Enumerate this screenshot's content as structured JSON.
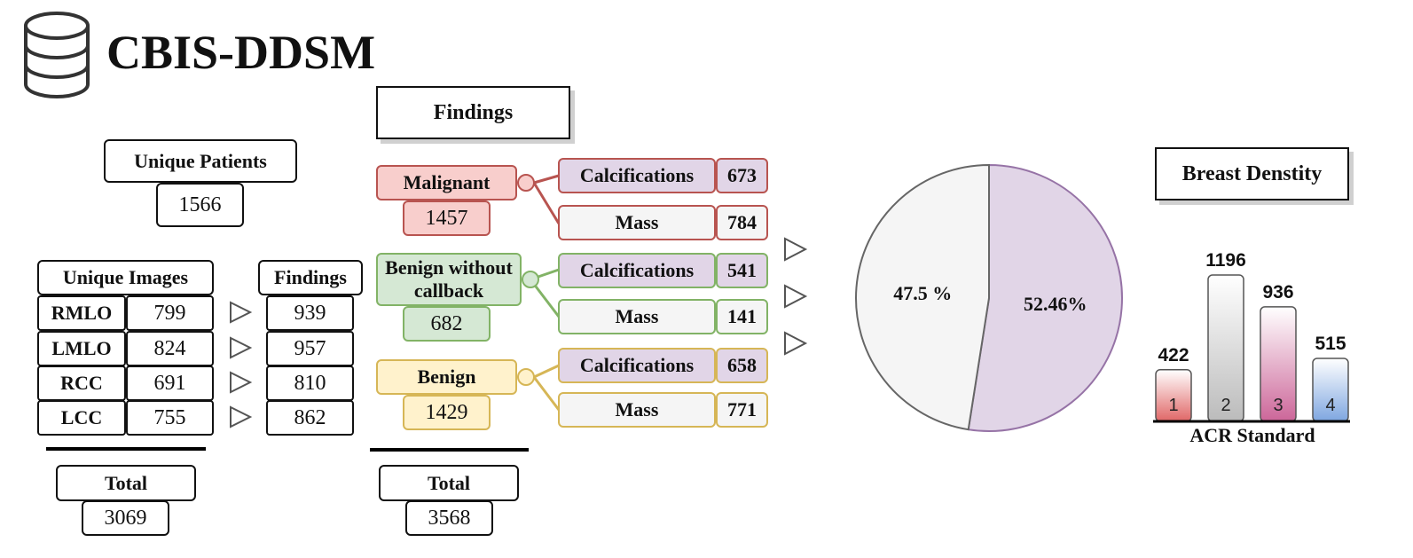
{
  "title": "CBIS-DDSM",
  "icon": "database-icon",
  "left": {
    "unique_patients": {
      "label": "Unique Patients",
      "value": "1566"
    },
    "images_header": "Unique Images",
    "findings_header": "Findings",
    "rows": [
      {
        "view": "RMLO",
        "images": "799",
        "findings": "939"
      },
      {
        "view": "LMLO",
        "images": "824",
        "findings": "957"
      },
      {
        "view": "RCC",
        "images": "691",
        "findings": "810"
      },
      {
        "view": "LCC",
        "images": "755",
        "findings": "862"
      }
    ],
    "total": {
      "label": "Total",
      "value": "3069"
    }
  },
  "findings": {
    "header": "Findings",
    "groups": [
      {
        "name": "Malignant",
        "value": "1457",
        "color": "#f8cecc",
        "border": "#b85450",
        "calc_label": "Calcifications",
        "calc_value": "673",
        "mass_label": "Mass",
        "mass_value": "784"
      },
      {
        "name": "Benign without callback",
        "value": "682",
        "color": "#d5e8d4",
        "border": "#82b366",
        "calc_label": "Calcifications",
        "calc_value": "541",
        "mass_label": "Mass",
        "mass_value": "141"
      },
      {
        "name": "Benign",
        "value": "1429",
        "color": "#fff2cc",
        "border": "#d6b656",
        "calc_label": "Calcifications",
        "calc_value": "658",
        "mass_label": "Mass",
        "mass_value": "771"
      }
    ],
    "total": {
      "label": "Total",
      "value": "3568"
    }
  },
  "pie": {
    "slices": [
      {
        "label": "52.46%",
        "value": 52.46,
        "color": "#e1d5e7",
        "stroke": "#9673a6"
      },
      {
        "label": "47.5 %",
        "value": 47.5,
        "color": "#f5f5f5",
        "stroke": "#666666"
      }
    ]
  },
  "density": {
    "header": "Breast Denstity",
    "xlabel": "ACR Standard",
    "chart_data": {
      "type": "bar",
      "categories": [
        "1",
        "2",
        "3",
        "4"
      ],
      "values": [
        422,
        1196,
        936,
        515
      ],
      "colors": [
        "#e06666",
        "#bbbbbb",
        "#cc6699",
        "#7ea6e0"
      ],
      "xlabel": "ACR Standard"
    }
  }
}
